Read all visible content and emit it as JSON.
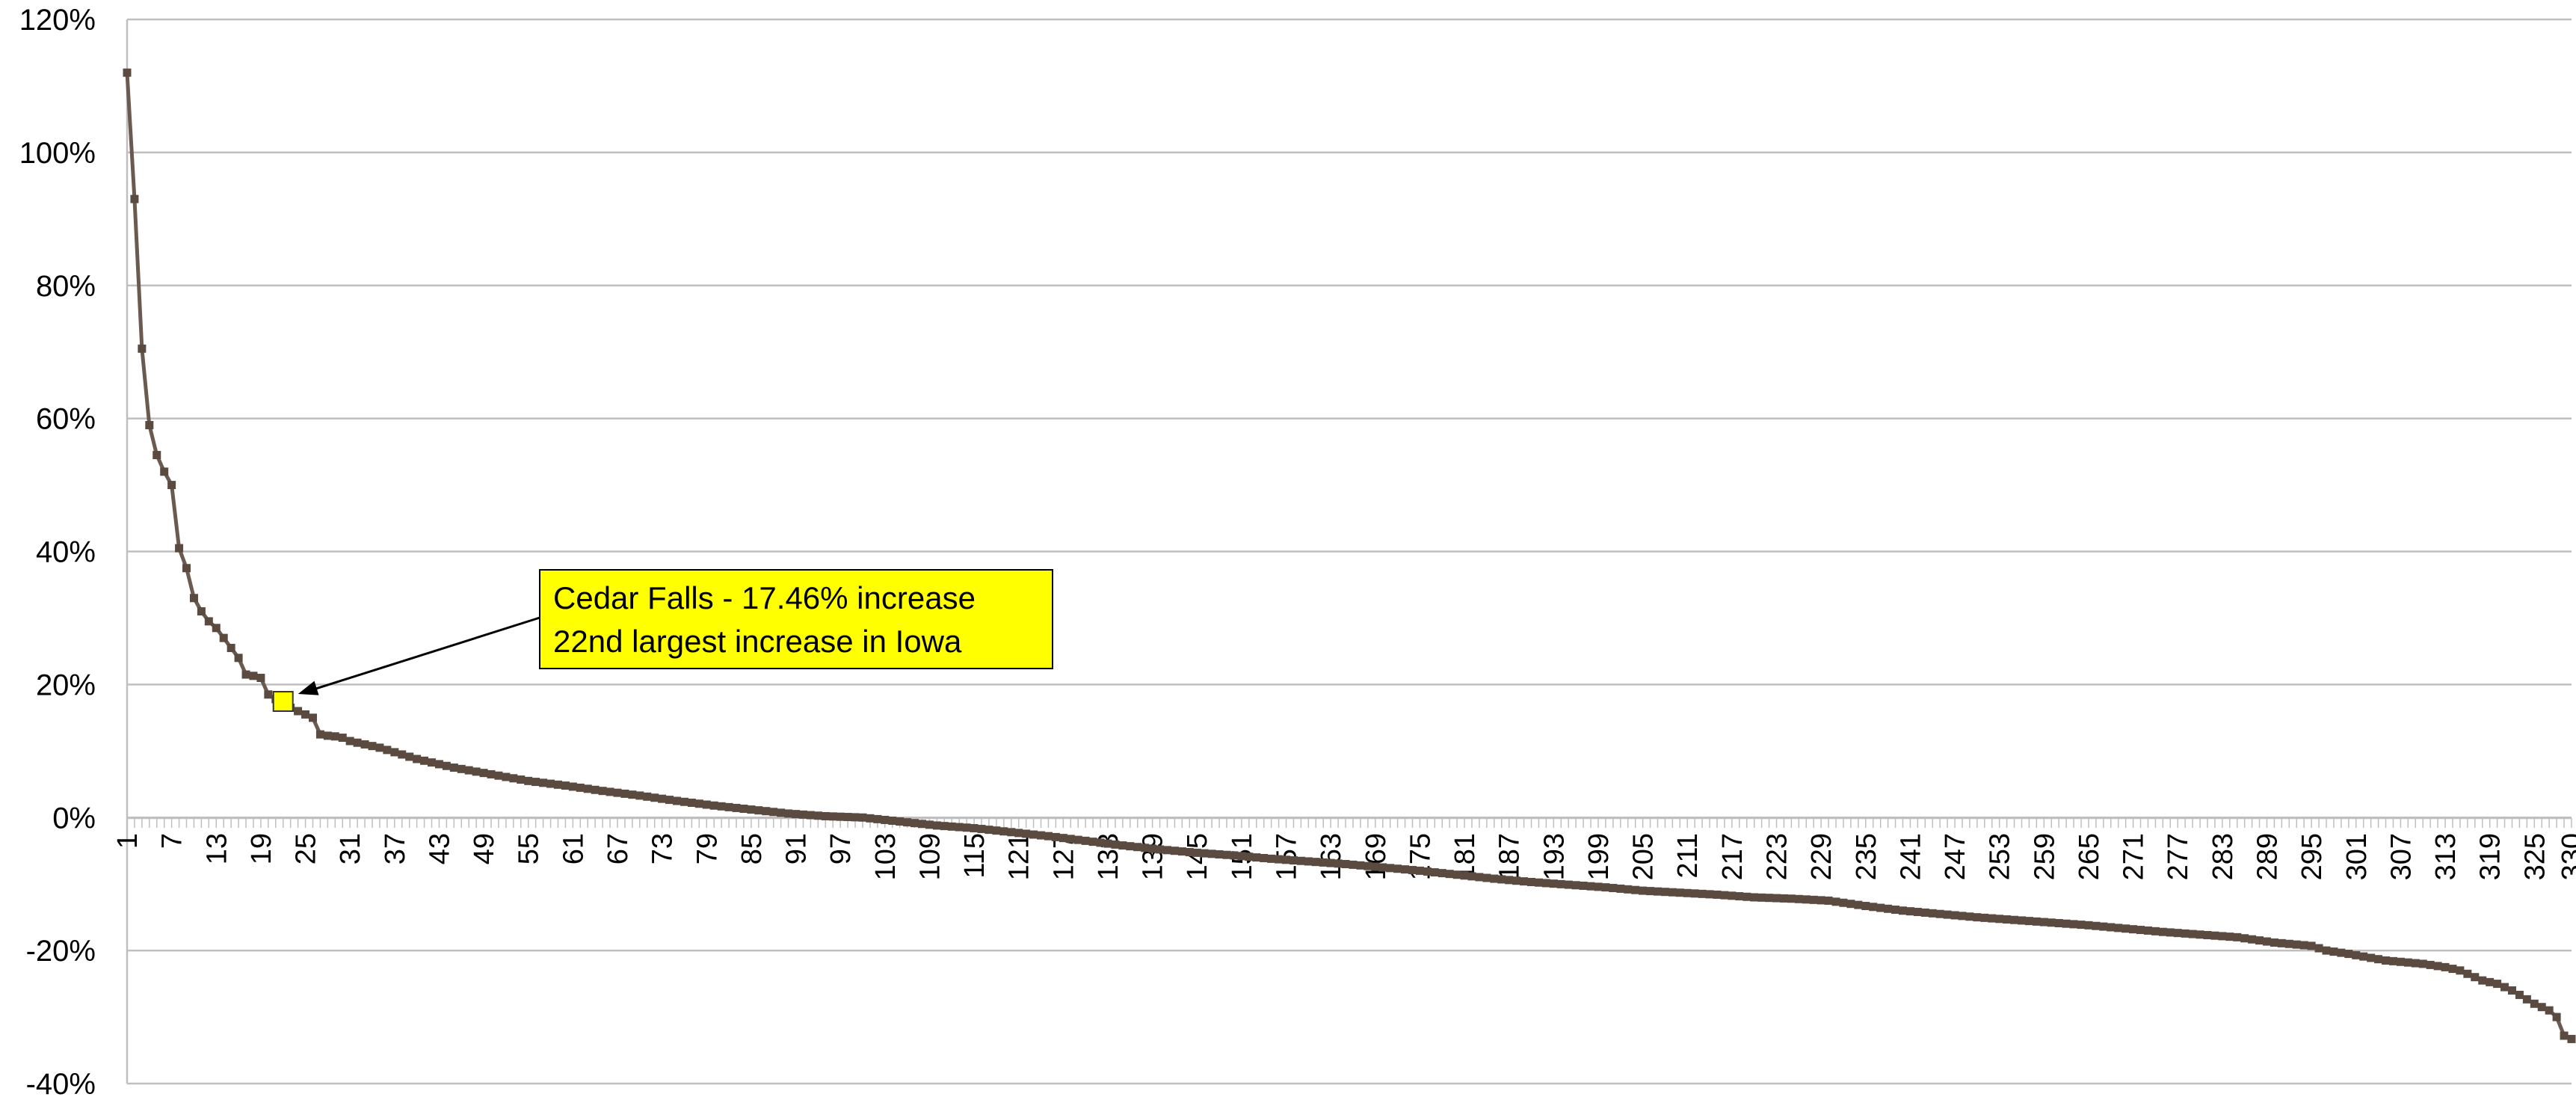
{
  "chart_data": {
    "type": "line",
    "title": "",
    "xlabel": "",
    "ylabel": "",
    "x_range": [
      1,
      330
    ],
    "x_tick_labels": [
      "1",
      "7",
      "13",
      "19",
      "25",
      "31",
      "37",
      "43",
      "49",
      "55",
      "61",
      "67",
      "73",
      "79",
      "85",
      "91",
      "97",
      "103",
      "109",
      "115",
      "121",
      "127",
      "133",
      "139",
      "145",
      "151",
      "157",
      "163",
      "169",
      "175",
      "181",
      "187",
      "193",
      "199",
      "205",
      "211",
      "217",
      "223",
      "229",
      "235",
      "241",
      "247",
      "253",
      "259",
      "265",
      "271",
      "277",
      "283",
      "289",
      "295",
      "301",
      "307",
      "313",
      "319",
      "325",
      "330"
    ],
    "y_tick_labels": [
      "-40%",
      "-20%",
      "0%",
      "20%",
      "40%",
      "60%",
      "80%",
      "100%",
      "120%"
    ],
    "ylim": [
      -40,
      120
    ],
    "grid": true,
    "colors": {
      "line": "#6b5a4f",
      "marker": "#5a4a40",
      "grid": "#bfbfbf",
      "highlight_fill": "#ffff00",
      "annotation_fill": "#ffff00"
    },
    "series": [
      {
        "points": [
          [
            1,
            112
          ],
          [
            2,
            93
          ],
          [
            3,
            70.5
          ],
          [
            4,
            59
          ],
          [
            5,
            54.5
          ],
          [
            6,
            52
          ],
          [
            7,
            50
          ],
          [
            8,
            40.5
          ],
          [
            9,
            37.5
          ],
          [
            10,
            33
          ],
          [
            11,
            31
          ],
          [
            12,
            29.5
          ],
          [
            13,
            28.5
          ],
          [
            14,
            27
          ],
          [
            15,
            25.5
          ],
          [
            16,
            24
          ],
          [
            17,
            21.5
          ],
          [
            18,
            21.3
          ],
          [
            19,
            21
          ],
          [
            20,
            18.5
          ],
          [
            21,
            17.8
          ],
          [
            22,
            17.46
          ],
          [
            23,
            16.5
          ],
          [
            24,
            16
          ],
          [
            25,
            15.5
          ],
          [
            26,
            15
          ],
          [
            27,
            12.5
          ],
          [
            28,
            12.3
          ],
          [
            29,
            12.2
          ],
          [
            30,
            12
          ],
          [
            31,
            11.5
          ],
          [
            35,
            10.5
          ],
          [
            40,
            8.8
          ],
          [
            45,
            7.5
          ],
          [
            50,
            6.5
          ],
          [
            55,
            5.5
          ],
          [
            60,
            4.8
          ],
          [
            65,
            4
          ],
          [
            70,
            3.3
          ],
          [
            75,
            2.5
          ],
          [
            80,
            1.8
          ],
          [
            85,
            1.2
          ],
          [
            90,
            0.6
          ],
          [
            95,
            0.2
          ],
          [
            100,
            0
          ],
          [
            105,
            -0.6
          ],
          [
            110,
            -1.2
          ],
          [
            115,
            -1.6
          ],
          [
            120,
            -2.2
          ],
          [
            125,
            -2.8
          ],
          [
            130,
            -3.5
          ],
          [
            135,
            -4.2
          ],
          [
            140,
            -4.8
          ],
          [
            145,
            -5.3
          ],
          [
            150,
            -5.7
          ],
          [
            155,
            -6.2
          ],
          [
            160,
            -6.6
          ],
          [
            165,
            -7
          ],
          [
            170,
            -7.5
          ],
          [
            175,
            -8
          ],
          [
            180,
            -8.6
          ],
          [
            185,
            -9.2
          ],
          [
            190,
            -9.7
          ],
          [
            195,
            -10.1
          ],
          [
            200,
            -10.5
          ],
          [
            205,
            -11
          ],
          [
            210,
            -11.3
          ],
          [
            215,
            -11.6
          ],
          [
            220,
            -12
          ],
          [
            225,
            -12.2
          ],
          [
            230,
            -12.5
          ],
          [
            235,
            -13.3
          ],
          [
            240,
            -14
          ],
          [
            245,
            -14.5
          ],
          [
            250,
            -15
          ],
          [
            255,
            -15.4
          ],
          [
            260,
            -15.8
          ],
          [
            265,
            -16.2
          ],
          [
            270,
            -16.7
          ],
          [
            275,
            -17.2
          ],
          [
            280,
            -17.6
          ],
          [
            285,
            -18
          ],
          [
            290,
            -18.8
          ],
          [
            295,
            -19.3
          ],
          [
            297,
            -20
          ],
          [
            300,
            -20.5
          ],
          [
            305,
            -21.5
          ],
          [
            310,
            -22
          ],
          [
            313,
            -22.5
          ],
          [
            315,
            -23
          ],
          [
            318,
            -24.5
          ],
          [
            320,
            -25
          ],
          [
            322,
            -26
          ],
          [
            325,
            -28
          ],
          [
            327,
            -29
          ],
          [
            328,
            -30
          ],
          [
            329,
            -32.8
          ],
          [
            330,
            -33.3
          ]
        ]
      }
    ],
    "highlight": {
      "x": 22,
      "y": 17.46
    },
    "annotation": {
      "line1": "Cedar Falls - 17.46% increase",
      "line2": "22nd largest increase in Iowa"
    }
  }
}
